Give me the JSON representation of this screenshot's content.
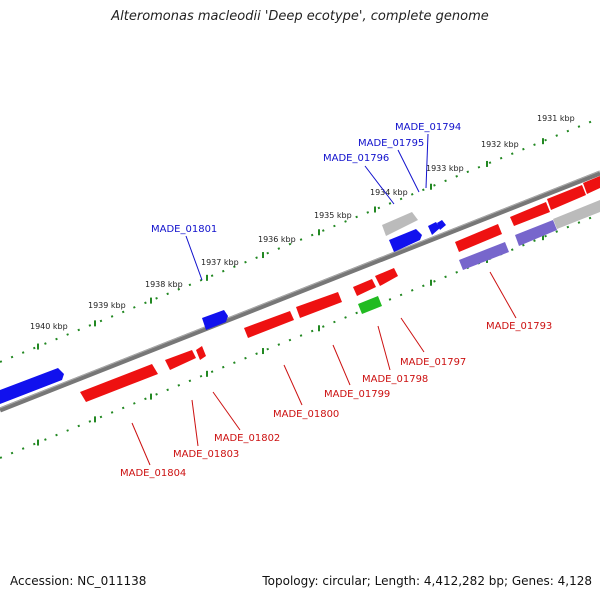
{
  "title": "Alteromonas macleodii 'Deep ecotype', complete genome",
  "accession": "Accession: NC_011138",
  "topology": "Topology: circular; Length: 4,412,282 bp; Genes: 4,128",
  "colors": {
    "forward_gene": "#1111ee",
    "reverse_gene": "#ee1111",
    "rna_gene": "#22bb22",
    "pseudo_forward": "#7766cc",
    "other": "#bbbbbb",
    "backbone": "#777777",
    "ticks": "#228822",
    "label_forward": "#1111cc",
    "label_reverse": "#cc1111"
  },
  "ticks": [
    {
      "label": "1931 kbp"
    },
    {
      "label": "1932 kbp"
    },
    {
      "label": "1933 kbp"
    },
    {
      "label": "1934 kbp"
    },
    {
      "label": "1935 kbp"
    },
    {
      "label": "1936 kbp"
    },
    {
      "label": "1937 kbp"
    },
    {
      "label": "1938 kbp"
    },
    {
      "label": "1939 kbp"
    },
    {
      "label": "1940 kbp"
    }
  ],
  "genes_forward": [
    {
      "label": "MADE_01794"
    },
    {
      "label": "MADE_01795"
    },
    {
      "label": "MADE_01796"
    },
    {
      "label": "MADE_01801"
    }
  ],
  "genes_reverse": [
    {
      "label": "MADE_01793"
    },
    {
      "label": "MADE_01797"
    },
    {
      "label": "MADE_01798"
    },
    {
      "label": "MADE_01799"
    },
    {
      "label": "MADE_01800"
    },
    {
      "label": "MADE_01802"
    },
    {
      "label": "MADE_01803"
    },
    {
      "label": "MADE_01804"
    }
  ]
}
